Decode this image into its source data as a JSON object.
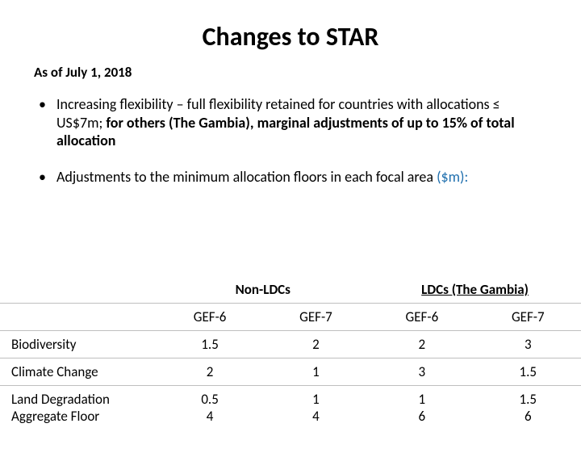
{
  "title": "Changes to STAR",
  "subtitle": "As of July 1, 2018",
  "bullet1": {
    "a": "Increasing flexibility – full flexibility retained for countries with allocations ≤ US$7m; ",
    "b": "for others (The Gambia), marginal adjustments of up to 15% of total allocation"
  },
  "bullet2": {
    "a": "Adjustments to the minimum allocation floors in each focal area ",
    "b": "($m):"
  },
  "table": {
    "group1": "Non-LDCs",
    "group2": "LDCs (The Gambia)",
    "sub": {
      "gef6": "GEF-6",
      "gef7": "GEF-7"
    },
    "rows": {
      "r1": {
        "label": "Biodiversity",
        "v": [
          "1.5",
          "2",
          "2",
          "3"
        ]
      },
      "r2": {
        "label": "Climate Change",
        "v": [
          "2",
          "1",
          "3",
          "1.5"
        ]
      },
      "r3": {
        "labelA": "Land Degradation",
        "labelB": "Aggregate Floor",
        "vA": [
          "0.5",
          "1",
          "1",
          "1.5"
        ],
        "vB": [
          "4",
          "4",
          "6",
          "6"
        ]
      }
    }
  }
}
